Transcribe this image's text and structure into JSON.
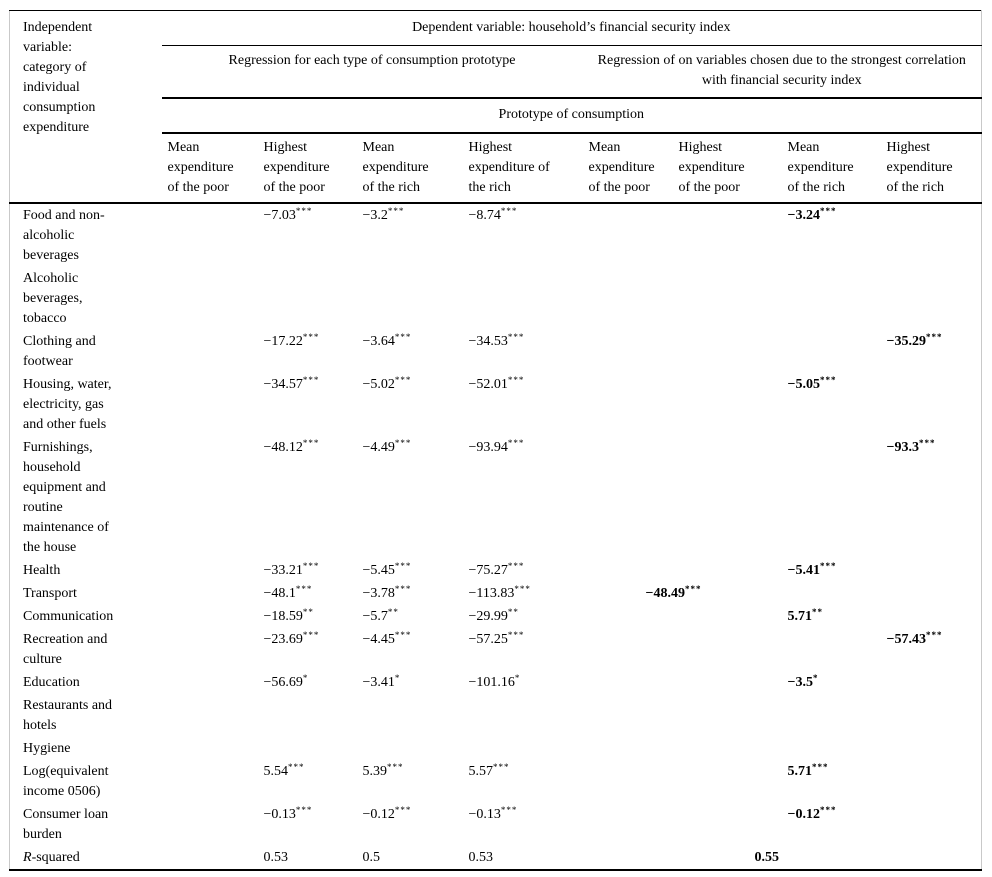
{
  "style_colors": {
    "text": "#000000",
    "rule": "#000000",
    "frame": "#c9c9c9",
    "background": "#ffffff"
  },
  "table": {
    "stub_header_lines": [
      "Independent",
      "variable:",
      "category of",
      "individual",
      "consumption",
      "expenditure"
    ],
    "spanner_top": "Dependent variable: household’s financial security index",
    "spanner_left": "Regression for each type of consumption prototype",
    "spanner_right": "Regression of on variables chosen due to the strongest correlation with financial security index",
    "spanner_prototype": "Prototype of consumption",
    "column_headers": [
      {
        "lines": [
          "Mean",
          "expenditure",
          "of the poor"
        ]
      },
      {
        "lines": [
          "Highest",
          "expenditure",
          "of the poor"
        ]
      },
      {
        "lines": [
          "Mean",
          "expenditure",
          "of the rich"
        ]
      },
      {
        "lines": [
          "Highest",
          "expenditure of",
          "the rich"
        ]
      },
      {
        "lines": [
          "Mean",
          "expenditure",
          "of the poor"
        ]
      },
      {
        "lines": [
          "Highest",
          "expenditure",
          "of the poor"
        ]
      },
      {
        "lines": [
          "Mean",
          "expenditure",
          "of the rich"
        ]
      },
      {
        "lines": [
          "Highest",
          "expenditure",
          "of the rich"
        ]
      }
    ],
    "rows": [
      {
        "label_lines": [
          "Food and non-",
          "alcoholic",
          "beverages"
        ],
        "cells": [
          null,
          {
            "v": "−7.03",
            "s": "***"
          },
          {
            "v": "−3.2",
            "s": "***"
          },
          {
            "v": "−8.74",
            "s": "***"
          },
          null,
          null,
          {
            "v": "−3.24",
            "s": "***"
          },
          null
        ]
      },
      {
        "label_lines": [
          "Alcoholic",
          "beverages,",
          "tobacco"
        ],
        "cells": [
          null,
          null,
          null,
          null,
          null,
          null,
          null,
          null
        ]
      },
      {
        "label_lines": [
          "Clothing and",
          "footwear"
        ],
        "cells": [
          null,
          {
            "v": "−17.22",
            "s": "***"
          },
          {
            "v": "−3.64",
            "s": "***"
          },
          {
            "v": "−34.53",
            "s": "***"
          },
          null,
          null,
          null,
          {
            "v": "−35.29",
            "s": "***"
          }
        ]
      },
      {
        "label_lines": [
          "Housing, water,",
          "electricity, gas",
          "and other fuels"
        ],
        "cells": [
          null,
          {
            "v": "−34.57",
            "s": "***"
          },
          {
            "v": "−5.02",
            "s": "***"
          },
          {
            "v": "−52.01",
            "s": "***"
          },
          null,
          null,
          {
            "v": "−5.05",
            "s": "***"
          },
          null
        ]
      },
      {
        "label_lines": [
          "Furnishings,",
          "household",
          "equipment and",
          "routine",
          "maintenance of",
          "the house"
        ],
        "cells": [
          null,
          {
            "v": "−48.12",
            "s": "***"
          },
          {
            "v": "−4.49",
            "s": "***"
          },
          {
            "v": "−93.94",
            "s": "***"
          },
          null,
          null,
          null,
          {
            "v": "−93.3",
            "s": "***"
          }
        ]
      },
      {
        "label_lines": [
          "Health"
        ],
        "cells": [
          null,
          {
            "v": "−33.21",
            "s": "***"
          },
          {
            "v": "−5.45",
            "s": "***"
          },
          {
            "v": "−75.27",
            "s": "***"
          },
          null,
          null,
          {
            "v": "−5.41",
            "s": "***"
          },
          null
        ]
      },
      {
        "label_lines": [
          "Transport"
        ],
        "cells": [
          null,
          {
            "v": "−48.1",
            "s": "***"
          },
          {
            "v": "−3.78",
            "s": "***"
          },
          {
            "v": "−113.83",
            "s": "***"
          },
          null,
          {
            "v": "−48.49",
            "s": "***",
            "nudge": true
          },
          null,
          null
        ]
      },
      {
        "label_lines": [
          "Communication"
        ],
        "cells": [
          null,
          {
            "v": "−18.59",
            "s": "**"
          },
          {
            "v": "−5.7",
            "s": "**"
          },
          {
            "v": "−29.99",
            "s": "**"
          },
          null,
          null,
          {
            "v": "5.71",
            "s": "**"
          },
          null
        ]
      },
      {
        "label_lines": [
          "Recreation and",
          "culture"
        ],
        "cells": [
          null,
          {
            "v": "−23.69",
            "s": "***"
          },
          {
            "v": "−4.45",
            "s": "***"
          },
          {
            "v": "−57.25",
            "s": "***"
          },
          null,
          null,
          null,
          {
            "v": "−57.43",
            "s": "***"
          }
        ]
      },
      {
        "label_lines": [
          "Education"
        ],
        "cells": [
          null,
          {
            "v": "−56.69",
            "s": "*"
          },
          {
            "v": "−3.41",
            "s": "*"
          },
          {
            "v": "−101.16",
            "s": "*"
          },
          null,
          null,
          {
            "v": "−3.5",
            "s": "*"
          },
          null
        ]
      },
      {
        "label_lines": [
          "Restaurants and",
          "hotels"
        ],
        "cells": [
          null,
          null,
          null,
          null,
          null,
          null,
          null,
          null
        ]
      },
      {
        "label_lines": [
          "Hygiene"
        ],
        "cells": [
          null,
          null,
          null,
          null,
          null,
          null,
          null,
          null
        ]
      },
      {
        "label_lines": [
          "Log(equivalent",
          "income 0506)"
        ],
        "cells": [
          null,
          {
            "v": "5.54",
            "s": "***"
          },
          {
            "v": "5.39",
            "s": "***"
          },
          {
            "v": "5.57",
            "s": "***"
          },
          null,
          null,
          {
            "v": "5.71",
            "s": "***"
          },
          null
        ]
      },
      {
        "label_lines": [
          "Consumer loan",
          "burden"
        ],
        "cells": [
          null,
          {
            "v": "−0.13",
            "s": "***"
          },
          {
            "v": "−0.12",
            "s": "***"
          },
          {
            "v": "−0.13",
            "s": "***"
          },
          null,
          null,
          {
            "v": "−0.12",
            "s": "***"
          },
          null
        ]
      },
      {
        "label_lines": [
          "R-squared"
        ],
        "italic_first": true,
        "cells": [
          null,
          {
            "v": "0.53"
          },
          {
            "v": "0.5"
          },
          {
            "v": "0.53"
          },
          null,
          null,
          {
            "v": "0.55",
            "nudge": true
          },
          null
        ]
      }
    ]
  }
}
